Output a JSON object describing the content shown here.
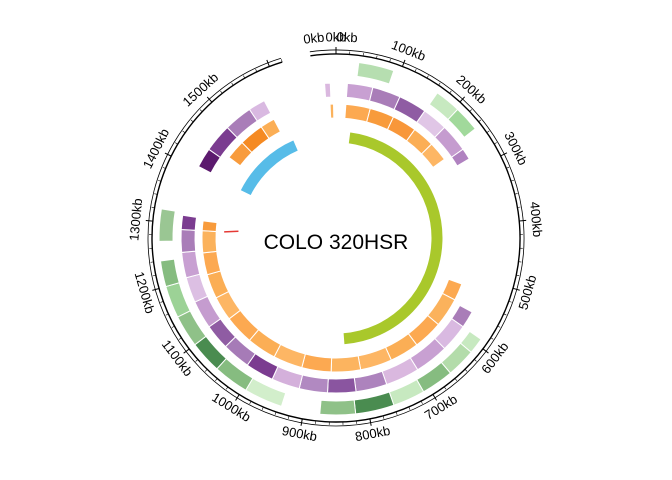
{
  "chart_data": {
    "type": "circos",
    "title": "COLO 320HSR",
    "genome_length_kb": 1620,
    "segment": {
      "start_kb": 0,
      "end_kb": 1620
    },
    "tick_labels": [
      {
        "kb": 0,
        "label": "0kb"
      },
      {
        "kb": 100,
        "label": "100kb"
      },
      {
        "kb": 200,
        "label": "200kb"
      },
      {
        "kb": 300,
        "label": "300kb"
      },
      {
        "kb": 400,
        "label": "400kb"
      },
      {
        "kb": 500,
        "label": "500kb"
      },
      {
        "kb": 600,
        "label": "600kb"
      },
      {
        "kb": 700,
        "label": "700kb"
      },
      {
        "kb": 800,
        "label": "800kb"
      },
      {
        "kb": 900,
        "label": "900kb"
      },
      {
        "kb": 1000,
        "label": "1000kb"
      },
      {
        "kb": 1100,
        "label": "1100kb"
      },
      {
        "kb": 1200,
        "label": "1200kb"
      },
      {
        "kb": 1300,
        "label": "1300kb"
      },
      {
        "kb": 1400,
        "label": "1400kb"
      },
      {
        "kb": 1500,
        "label": "1500kb"
      }
    ],
    "extra_labels": [
      {
        "kb": -30,
        "label": "0kb"
      },
      {
        "kb": 15,
        "label": "0kb"
      }
    ],
    "tracks": [
      {
        "name": "green",
        "blocks": [
          {
            "start": 35,
            "end": 90,
            "color": "#b6deb0"
          },
          {
            "start": 165,
            "end": 205,
            "color": "#c7e9c0"
          },
          {
            "start": 205,
            "end": 245,
            "color": "#a1d99b"
          },
          {
            "start": 590,
            "end": 615,
            "color": "#c7e9c0"
          },
          {
            "start": 615,
            "end": 660,
            "color": "#b3dcaa"
          },
          {
            "start": 660,
            "end": 710,
            "color": "#86bc80"
          },
          {
            "start": 710,
            "end": 760,
            "color": "#c7e9c0"
          },
          {
            "start": 760,
            "end": 820,
            "color": "#4a8c50"
          },
          {
            "start": 820,
            "end": 875,
            "color": "#8fc188"
          },
          {
            "start": 935,
            "end": 995,
            "color": "#d2eecb"
          },
          {
            "start": 995,
            "end": 1050,
            "color": "#86bc80"
          },
          {
            "start": 1050,
            "end": 1100,
            "color": "#4a8c50"
          },
          {
            "start": 1100,
            "end": 1150,
            "color": "#8fc188"
          },
          {
            "start": 1150,
            "end": 1200,
            "color": "#9cd296"
          },
          {
            "start": 1200,
            "end": 1240,
            "color": "#86bc80"
          },
          {
            "start": 1270,
            "end": 1320,
            "color": "#9ac693"
          }
        ]
      },
      {
        "name": "purple",
        "blocks": [
          {
            "start": -20,
            "end": -10,
            "color": "#dab8df"
          },
          {
            "start": 20,
            "end": 65,
            "color": "#c8a0d2"
          },
          {
            "start": 65,
            "end": 115,
            "color": "#a97db8"
          },
          {
            "start": 115,
            "end": 165,
            "color": "#8f5ca3"
          },
          {
            "start": 165,
            "end": 210,
            "color": "#e0c6e6"
          },
          {
            "start": 210,
            "end": 260,
            "color": "#c59ccf"
          },
          {
            "start": 260,
            "end": 280,
            "color": "#b082c0"
          },
          {
            "start": 560,
            "end": 590,
            "color": "#a97db8"
          },
          {
            "start": 590,
            "end": 640,
            "color": "#d9b9e1"
          },
          {
            "start": 640,
            "end": 700,
            "color": "#c8a0d2"
          },
          {
            "start": 700,
            "end": 760,
            "color": "#dab8df"
          },
          {
            "start": 760,
            "end": 815,
            "color": "#ad83bd"
          },
          {
            "start": 815,
            "end": 865,
            "color": "#8a55a0"
          },
          {
            "start": 865,
            "end": 915,
            "color": "#b189c1"
          },
          {
            "start": 915,
            "end": 965,
            "color": "#d4b0db"
          },
          {
            "start": 965,
            "end": 1015,
            "color": "#7b3c90"
          },
          {
            "start": 1015,
            "end": 1065,
            "color": "#a67bb7"
          },
          {
            "start": 1065,
            "end": 1110,
            "color": "#8f5ca3"
          },
          {
            "start": 1110,
            "end": 1160,
            "color": "#c59ccf"
          },
          {
            "start": 1160,
            "end": 1205,
            "color": "#dcbfe3"
          },
          {
            "start": 1205,
            "end": 1250,
            "color": "#c8a0d2"
          },
          {
            "start": 1250,
            "end": 1290,
            "color": "#a97db8"
          },
          {
            "start": 1290,
            "end": 1315,
            "color": "#7b3c90"
          },
          {
            "start": 1405,
            "end": 1440,
            "color": "#5c1a6e"
          },
          {
            "start": 1440,
            "end": 1490,
            "color": "#7b3c90"
          },
          {
            "start": 1490,
            "end": 1540,
            "color": "#a97db8"
          },
          {
            "start": 1540,
            "end": 1570,
            "color": "#d9b9e1"
          }
        ]
      },
      {
        "name": "orange",
        "blocks": [
          {
            "start": -12,
            "end": -5,
            "color": "#fbb25c"
          },
          {
            "start": 20,
            "end": 70,
            "color": "#fca951"
          },
          {
            "start": 70,
            "end": 120,
            "color": "#f89b3c"
          },
          {
            "start": 120,
            "end": 170,
            "color": "#f8973a"
          },
          {
            "start": 170,
            "end": 215,
            "color": "#fbae55"
          },
          {
            "start": 215,
            "end": 255,
            "color": "#fdb664"
          },
          {
            "start": 520,
            "end": 555,
            "color": "#fca951"
          },
          {
            "start": 555,
            "end": 615,
            "color": "#fbb25c"
          },
          {
            "start": 615,
            "end": 675,
            "color": "#fca951"
          },
          {
            "start": 675,
            "end": 735,
            "color": "#fbae55"
          },
          {
            "start": 735,
            "end": 800,
            "color": "#fdb664"
          },
          {
            "start": 800,
            "end": 860,
            "color": "#fcb45f"
          },
          {
            "start": 860,
            "end": 920,
            "color": "#fca951"
          },
          {
            "start": 920,
            "end": 980,
            "color": "#fdb664"
          },
          {
            "start": 980,
            "end": 1040,
            "color": "#fbae55"
          },
          {
            "start": 1040,
            "end": 1100,
            "color": "#fca951"
          },
          {
            "start": 1100,
            "end": 1150,
            "color": "#fdb664"
          },
          {
            "start": 1150,
            "end": 1200,
            "color": "#fbae55"
          },
          {
            "start": 1200,
            "end": 1245,
            "color": "#fca951"
          },
          {
            "start": 1245,
            "end": 1290,
            "color": "#fbb25c"
          },
          {
            "start": 1290,
            "end": 1310,
            "color": "#f89b3c"
          },
          {
            "start": 1450,
            "end": 1490,
            "color": "#f89b3c"
          },
          {
            "start": 1490,
            "end": 1540,
            "color": "#f58a22"
          },
          {
            "start": 1540,
            "end": 1570,
            "color": "#fbae55"
          }
        ]
      },
      {
        "name": "inner",
        "blocks": [
          {
            "start": 35,
            "end": 830,
            "color": "#a9c82b"
          },
          {
            "start": 1400,
            "end": 1590,
            "color": "#57bce8"
          }
        ]
      }
    ],
    "links": [
      {
        "start": 1290,
        "end": 1300,
        "color": "#e53935"
      }
    ]
  }
}
